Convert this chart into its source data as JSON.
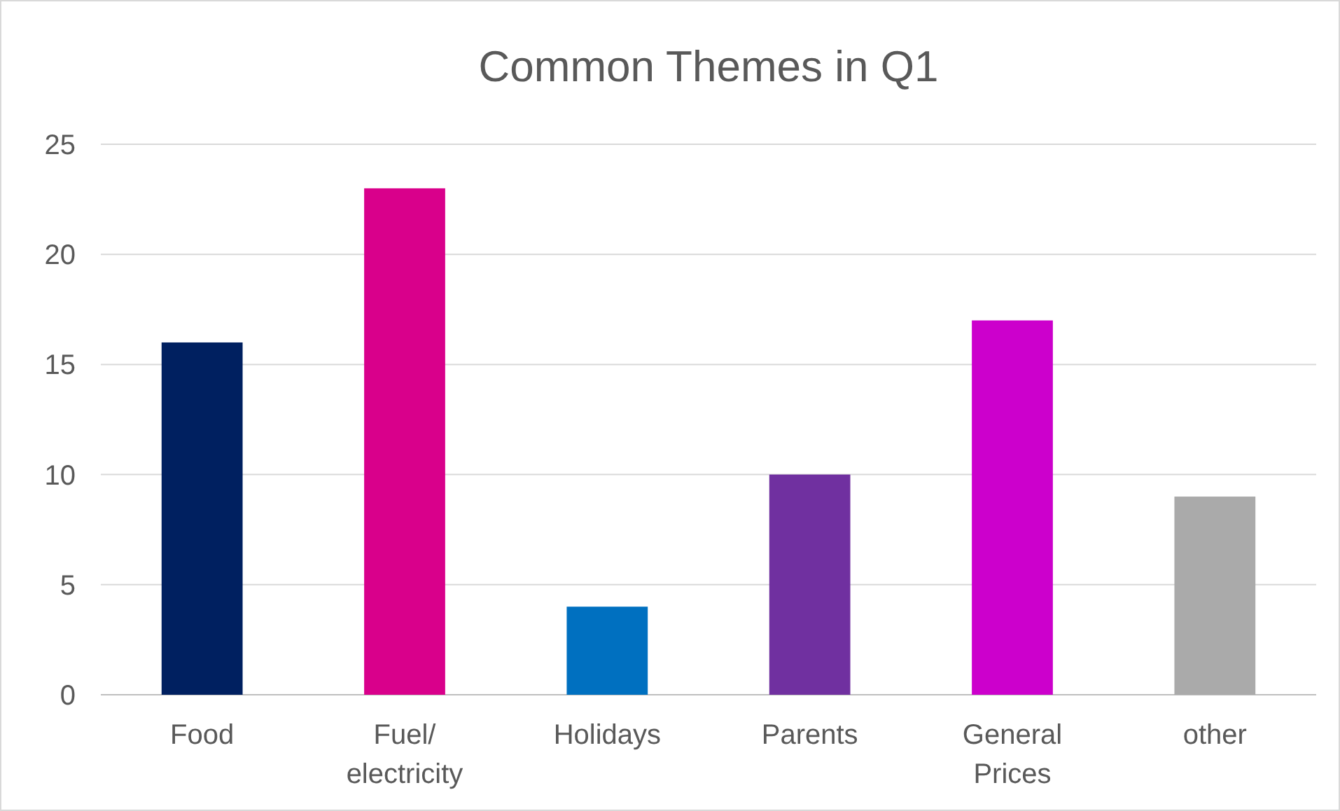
{
  "chart_data": {
    "type": "bar",
    "title": "Common Themes in Q1",
    "categories": [
      "Food",
      "Fuel/ electricity",
      "Holidays",
      "Parents",
      "General Prices",
      "other"
    ],
    "values": [
      16,
      23,
      4,
      10,
      17,
      9
    ],
    "colors": [
      "#002060",
      "#d9008b",
      "#0070c0",
      "#7030a0",
      "#cc00cc",
      "#aaaaaa"
    ],
    "ylim": [
      0,
      25
    ],
    "yticks": [
      0,
      5,
      10,
      15,
      20,
      25
    ],
    "grid": "y"
  }
}
